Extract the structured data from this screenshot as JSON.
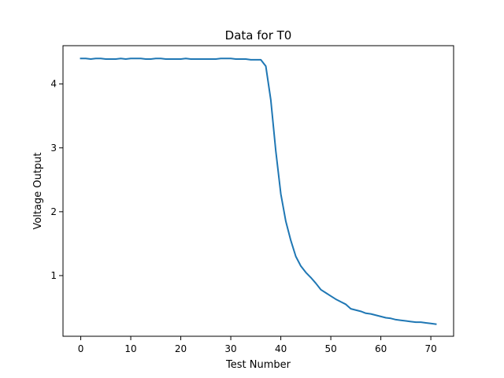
{
  "chart_data": {
    "type": "line",
    "title": "Data for T0",
    "xlabel": "Test Number",
    "ylabel": "Voltage Output",
    "xlim": [
      -3.55,
      74.55
    ],
    "ylim": [
      0.05,
      4.6
    ],
    "xticks": [
      0,
      10,
      20,
      30,
      40,
      50,
      60,
      70
    ],
    "yticks": [
      1,
      2,
      3,
      4
    ],
    "grid": false,
    "legend": "none",
    "line_color": "#1f77b4",
    "series": [
      {
        "x": [
          0,
          1,
          2,
          3,
          4,
          5,
          6,
          7,
          8,
          9,
          10,
          11,
          12,
          13,
          14,
          15,
          16,
          17,
          18,
          19,
          20,
          21,
          22,
          23,
          24,
          25,
          26,
          27,
          28,
          29,
          30,
          31,
          32,
          33,
          34,
          35,
          36,
          37,
          38,
          39,
          40,
          41,
          42,
          43,
          44,
          45,
          46,
          47,
          48,
          49,
          50,
          51,
          52,
          53,
          54,
          55,
          56,
          57,
          58,
          59,
          60,
          61,
          62,
          63,
          64,
          65,
          66,
          67,
          68,
          69,
          70,
          71
        ],
        "values": [
          4.4,
          4.4,
          4.39,
          4.4,
          4.4,
          4.39,
          4.39,
          4.39,
          4.4,
          4.39,
          4.4,
          4.4,
          4.4,
          4.39,
          4.39,
          4.4,
          4.4,
          4.39,
          4.39,
          4.39,
          4.39,
          4.4,
          4.39,
          4.39,
          4.39,
          4.39,
          4.39,
          4.39,
          4.4,
          4.4,
          4.4,
          4.39,
          4.39,
          4.39,
          4.38,
          4.38,
          4.38,
          4.28,
          3.75,
          2.95,
          2.28,
          1.85,
          1.55,
          1.3,
          1.15,
          1.05,
          0.97,
          0.88,
          0.78,
          0.73,
          0.68,
          0.63,
          0.59,
          0.55,
          0.48,
          0.46,
          0.44,
          0.41,
          0.4,
          0.38,
          0.36,
          0.34,
          0.33,
          0.31,
          0.3,
          0.29,
          0.28,
          0.27,
          0.27,
          0.26,
          0.25,
          0.24
        ]
      }
    ]
  }
}
